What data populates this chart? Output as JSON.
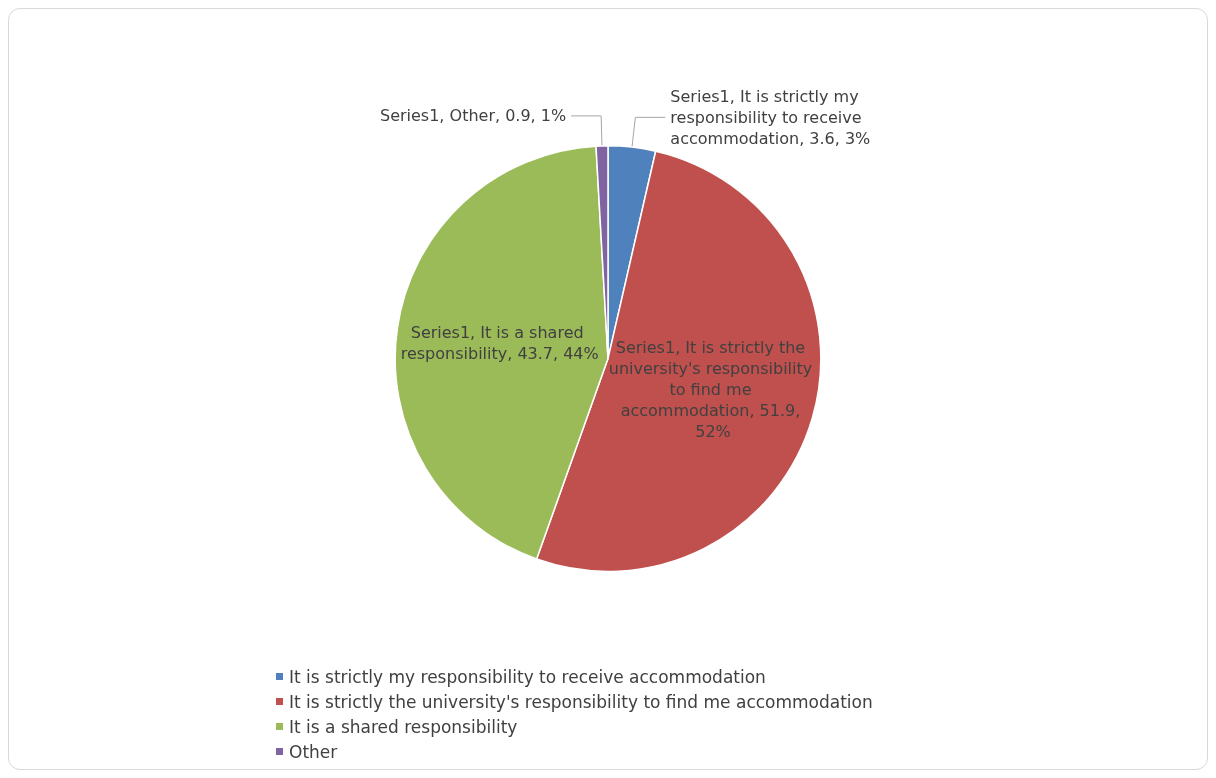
{
  "chart_data": {
    "type": "pie",
    "categories": [
      "It is strictly my responsibility to receive accommodation",
      "It is strictly the university's responsibility to find me accommodation",
      "It is a shared responsibility",
      "Other"
    ],
    "series": [
      {
        "values": [
          3.6,
          51.9,
          43.7,
          0.9
        ],
        "value_labels": [
          "Series1, It is strictly my responsibility to receive accommodation, 3.6, 3%",
          "Series1, It is strictly the university's responsibility to find me accommodation, 51.9, 52%",
          "Series1, It is a shared responsibility, 43.7, 44%",
          "Series1, Other, 0.9, 1%"
        ]
      }
    ],
    "colors": [
      "#4f81bd",
      "#c0504d",
      "#9bbb59",
      "#8064a2"
    ],
    "legend": "bottom left"
  }
}
